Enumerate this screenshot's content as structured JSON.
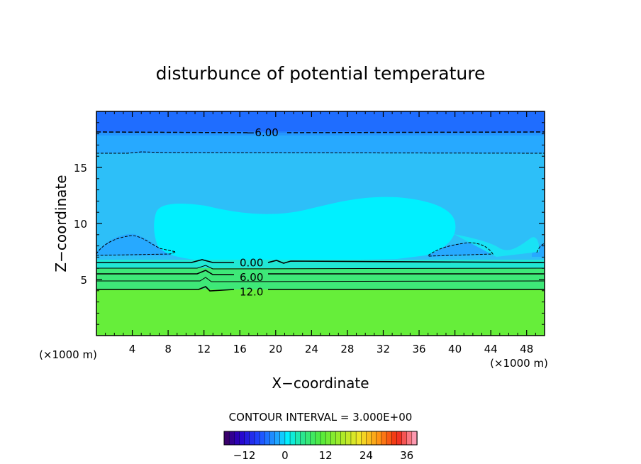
{
  "chart_data": {
    "type": "heatmap",
    "title": "disturbunce of potential temperature",
    "xlabel": "X−coordinate",
    "ylabel": "Z−coordinate",
    "x_unit": "(×1000 m)",
    "y_unit": "(×1000 m)",
    "xlim": [
      0,
      50
    ],
    "ylim": [
      0,
      20
    ],
    "x_ticks": [
      4,
      8,
      12,
      16,
      20,
      24,
      28,
      32,
      36,
      40,
      44,
      48
    ],
    "y_ticks": [
      5,
      10,
      15
    ],
    "contour_labels": [
      {
        "text": "−6.00",
        "x": 18.5,
        "z": 18.1
      },
      {
        "text": "0.00",
        "x": 17.3,
        "z": 6.5
      },
      {
        "text": "6.00",
        "x": 17.3,
        "z": 5.2
      },
      {
        "text": "12.0",
        "x": 17.3,
        "z": 3.9
      }
    ],
    "contour_interval_text": "CONTOUR INTERVAL = 3.000E+00",
    "colorbar": {
      "min": -18,
      "max": 39,
      "tick_values": [
        -12,
        0,
        12,
        24,
        36
      ],
      "tick_labels": [
        "−12",
        "0",
        "12",
        "24",
        "36"
      ]
    }
  },
  "colors": {
    "band_top": "#1f6dff",
    "band_upper": "#27a9ff",
    "band_mid": "#2dbff8",
    "plume": "#00f0ff",
    "transition": "#21e7d4",
    "green_low": "#3ee878",
    "ground": "#66ee3a"
  }
}
